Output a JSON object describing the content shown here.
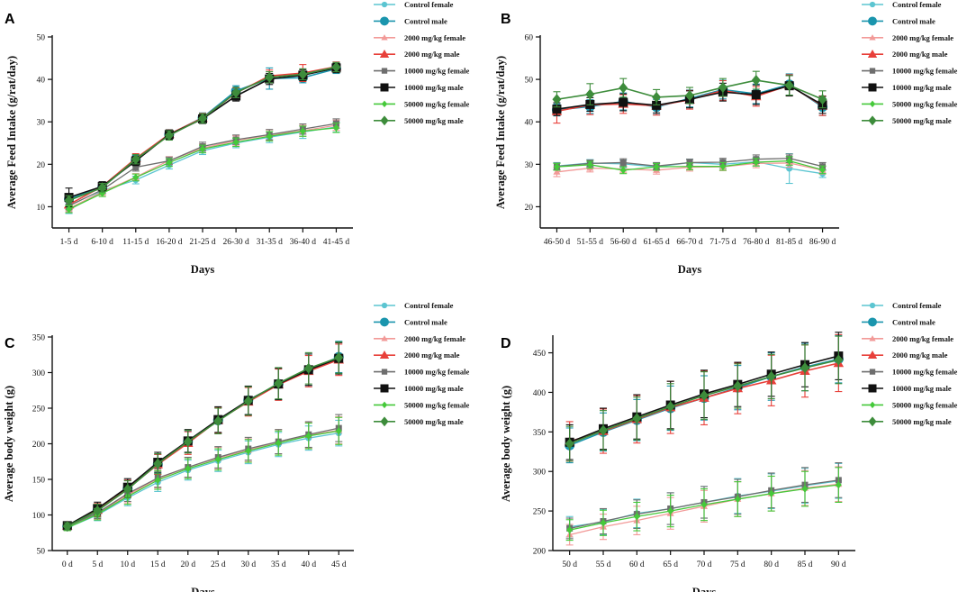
{
  "legend_entries": [
    {
      "name": "Control female",
      "color": "#5cc5d1",
      "marker": "circle",
      "size": 3.5
    },
    {
      "name": "Control male",
      "color": "#1a95ad",
      "marker": "circle",
      "size": 5.5
    },
    {
      "name": "2000 mg/kg female",
      "color": "#f29a98",
      "marker": "triangle",
      "size": 3.5
    },
    {
      "name": "2000 mg/kg male",
      "color": "#e8403a",
      "marker": "triangle",
      "size": 5
    },
    {
      "name": "10000 mg/kg female",
      "color": "#6e6e6e",
      "marker": "square",
      "size": 3.5
    },
    {
      "name": "10000 mg/kg male",
      "color": "#111111",
      "marker": "square",
      "size": 5
    },
    {
      "name": "50000 mg/kg female",
      "color": "#45c93a",
      "marker": "diamond",
      "size": 3.5
    },
    {
      "name": "50000 mg/kg male",
      "color": "#3d8c3b",
      "marker": "diamond",
      "size": 5
    }
  ],
  "chart_data": [
    {
      "panel": "A",
      "type": "line",
      "xlabel": "Days",
      "ylabel": "Average Feed Intake (g/rat/day)",
      "categories": [
        "1-5 d",
        "6-10 d",
        "11-15 d",
        "16-20 d",
        "21-25 d",
        "26-30 d",
        "31-35 d",
        "36-40 d",
        "41-45 d"
      ],
      "ylim": [
        5,
        50
      ],
      "yticks": [
        10,
        20,
        30,
        40,
        50
      ],
      "series": [
        {
          "name": "Control female",
          "values": [
            9.2,
            13.8,
            16.3,
            19.8,
            23.2,
            25.0,
            26.4,
            27.6,
            28.8
          ],
          "err": [
            0.8,
            0.8,
            0.9,
            0.9,
            0.9,
            1.1,
            1.3,
            1.5,
            1.2
          ]
        },
        {
          "name": "Control male",
          "values": [
            11.8,
            14.6,
            21.0,
            27.0,
            31.0,
            37.3,
            40.2,
            40.4,
            42.5
          ],
          "err": [
            1.2,
            1.0,
            1.1,
            1.1,
            1.1,
            1.2,
            2.5,
            1.2,
            1.1
          ]
        },
        {
          "name": "2000 mg/kg female",
          "values": [
            9.6,
            13.5,
            17.0,
            20.9,
            23.8,
            25.6,
            26.9,
            27.9,
            29.2
          ],
          "err": [
            0.8,
            0.8,
            0.8,
            0.9,
            1.0,
            1.1,
            1.2,
            1.3,
            1.2
          ]
        },
        {
          "name": "2000 mg/kg male",
          "values": [
            10.5,
            14.8,
            21.4,
            27.1,
            30.9,
            36.8,
            40.8,
            41.5,
            43.0
          ],
          "err": [
            1.0,
            1.0,
            1.1,
            1.0,
            1.1,
            1.2,
            1.4,
            2.0,
            1.1
          ]
        },
        {
          "name": "10000 mg/kg female",
          "values": [
            10.2,
            14.0,
            19.3,
            20.8,
            24.2,
            25.8,
            27.0,
            28.3,
            29.6
          ],
          "err": [
            0.9,
            0.8,
            0.9,
            0.9,
            1.0,
            1.1,
            1.2,
            1.2,
            1.1
          ]
        },
        {
          "name": "10000 mg/kg male",
          "values": [
            12.2,
            14.8,
            20.8,
            27.0,
            30.7,
            36.1,
            40.1,
            41.0,
            42.7
          ],
          "err": [
            2.2,
            1.1,
            1.1,
            1.1,
            1.1,
            1.2,
            1.3,
            1.3,
            1.1
          ]
        },
        {
          "name": "50000 mg/kg female",
          "values": [
            9.4,
            13.2,
            16.9,
            20.4,
            23.6,
            25.2,
            26.6,
            27.8,
            28.6
          ],
          "err": [
            0.8,
            0.8,
            0.8,
            0.9,
            0.9,
            1.0,
            1.1,
            1.2,
            1.1
          ]
        },
        {
          "name": "50000 mg/kg male",
          "values": [
            11.5,
            14.5,
            21.2,
            26.8,
            30.8,
            36.9,
            40.5,
            41.2,
            42.9
          ],
          "err": [
            1.1,
            1.0,
            1.1,
            1.1,
            1.1,
            1.2,
            1.3,
            1.3,
            1.1
          ]
        }
      ]
    },
    {
      "panel": "B",
      "type": "line",
      "xlabel": "Days",
      "ylabel": "Average Feed Intake (g/rat/day)",
      "categories": [
        "46-50 d",
        "51-55 d",
        "56-60 d",
        "61-65 d",
        "66-70 d",
        "71-75 d",
        "76-80 d",
        "81-85 d",
        "86-90 d"
      ],
      "ylim": [
        15,
        60
      ],
      "yticks": [
        20,
        30,
        40,
        50,
        60
      ],
      "series": [
        {
          "name": "Control female",
          "values": [
            29.6,
            30.3,
            30.1,
            29.4,
            30.4,
            30.0,
            30.6,
            29.0,
            27.8
          ],
          "err": [
            0.8,
            0.8,
            0.9,
            0.8,
            0.8,
            0.9,
            1.0,
            3.5,
            0.9
          ]
        },
        {
          "name": "Control male",
          "values": [
            42.8,
            43.6,
            44.8,
            43.5,
            45.5,
            47.6,
            46.6,
            48.8,
            43.5
          ],
          "err": [
            1.4,
            1.6,
            2.0,
            1.8,
            2.0,
            2.2,
            2.3,
            2.5,
            2.0
          ]
        },
        {
          "name": "2000 mg/kg female",
          "values": [
            28.2,
            29.1,
            28.9,
            28.6,
            29.3,
            29.4,
            30.2,
            30.3,
            28.6
          ],
          "err": [
            1.1,
            0.9,
            0.9,
            0.9,
            0.9,
            0.9,
            1.0,
            1.0,
            0.9
          ]
        },
        {
          "name": "2000 mg/kg male",
          "values": [
            42.5,
            44.0,
            44.2,
            43.8,
            45.2,
            47.4,
            46.0,
            48.6,
            43.8
          ],
          "err": [
            2.8,
            2.3,
            2.2,
            2.2,
            2.2,
            2.3,
            2.3,
            2.5,
            2.3
          ]
        },
        {
          "name": "10000 mg/kg female",
          "values": [
            29.5,
            30.2,
            30.4,
            29.6,
            30.4,
            30.5,
            31.2,
            31.4,
            29.5
          ],
          "err": [
            0.8,
            0.8,
            0.9,
            0.8,
            0.8,
            0.9,
            1.0,
            1.0,
            0.9
          ]
        },
        {
          "name": "10000 mg/kg male",
          "values": [
            43.0,
            44.1,
            44.6,
            43.9,
            45.3,
            47.0,
            46.4,
            48.5,
            44.0
          ],
          "err": [
            1.5,
            1.6,
            2.0,
            1.8,
            2.0,
            2.1,
            2.3,
            2.4,
            2.0
          ]
        },
        {
          "name": "50000 mg/kg female",
          "values": [
            29.4,
            29.9,
            28.6,
            29.4,
            29.5,
            29.5,
            30.5,
            30.8,
            28.7
          ],
          "err": [
            0.8,
            0.8,
            0.8,
            0.8,
            0.8,
            0.9,
            0.9,
            1.0,
            0.9
          ]
        },
        {
          "name": "50000 mg/kg male",
          "values": [
            45.3,
            46.5,
            48.0,
            45.8,
            46.2,
            48.1,
            49.8,
            48.6,
            45.3
          ],
          "err": [
            1.8,
            2.5,
            2.2,
            1.8,
            1.9,
            2.1,
            2.1,
            2.3,
            2.0
          ]
        }
      ]
    },
    {
      "panel": "C",
      "type": "line",
      "xlabel": "Days",
      "ylabel": "Average body weight (g)",
      "categories": [
        "0 d",
        "5 d",
        "10 d",
        "15 d",
        "20 d",
        "25 d",
        "30 d",
        "35 d",
        "40 d",
        "45 d"
      ],
      "ylim": [
        50,
        350
      ],
      "yticks": [
        50,
        100,
        150,
        200,
        250,
        300,
        350
      ],
      "series": [
        {
          "name": "Control female",
          "values": [
            82,
            100,
            124,
            146,
            163,
            176,
            188,
            199,
            208,
            215
          ],
          "err": [
            4,
            8,
            11,
            13,
            14,
            15,
            16,
            17,
            17,
            18
          ]
        },
        {
          "name": "Control male",
          "values": [
            84,
            106,
            137,
            171,
            203,
            233,
            261,
            284,
            304,
            322
          ],
          "err": [
            5,
            9,
            12,
            14,
            15,
            18,
            20,
            22,
            22,
            22
          ]
        },
        {
          "name": "2000 mg/kg female",
          "values": [
            82,
            102,
            128,
            151,
            167,
            180,
            191,
            203,
            212,
            219
          ],
          "err": [
            4,
            8,
            11,
            13,
            14,
            15,
            16,
            17,
            18,
            19
          ]
        },
        {
          "name": "2000 mg/kg male",
          "values": [
            85,
            107,
            137,
            171,
            201,
            233,
            259,
            283,
            302,
            318
          ],
          "err": [
            5,
            9,
            12,
            14,
            16,
            18,
            20,
            22,
            22,
            22
          ]
        },
        {
          "name": "10000 mg/kg female",
          "values": [
            84,
            103,
            130,
            152,
            167,
            181,
            193,
            203,
            213,
            222
          ],
          "err": [
            4,
            8,
            11,
            13,
            14,
            15,
            16,
            17,
            18,
            19
          ]
        },
        {
          "name": "10000 mg/kg male",
          "values": [
            85,
            109,
            139,
            174,
            204,
            234,
            261,
            284,
            304,
            320
          ],
          "err": [
            5,
            9,
            12,
            14,
            16,
            18,
            20,
            22,
            22,
            22
          ]
        },
        {
          "name": "50000 mg/kg female",
          "values": [
            82,
            101,
            126,
            149,
            165,
            178,
            190,
            201,
            211,
            218
          ],
          "err": [
            4,
            8,
            11,
            13,
            14,
            15,
            16,
            17,
            18,
            19
          ]
        },
        {
          "name": "50000 mg/kg male",
          "values": [
            84,
            106,
            136,
            172,
            203,
            232,
            260,
            285,
            306,
            321
          ],
          "err": [
            5,
            9,
            12,
            14,
            16,
            18,
            20,
            22,
            22,
            22
          ]
        }
      ]
    },
    {
      "panel": "D",
      "type": "line",
      "xlabel": "Days",
      "ylabel": "Average body weight (g)",
      "categories": [
        "50 d",
        "55 d",
        "60 d",
        "65 d",
        "70 d",
        "75 d",
        "80 d",
        "85 d",
        "90 d"
      ],
      "ylim": [
        200,
        470
      ],
      "yticks": [
        200,
        250,
        300,
        350,
        400,
        450
      ],
      "series": [
        {
          "name": "Control female",
          "values": [
            230,
            236,
            247,
            253,
            261,
            269,
            275,
            282,
            288
          ],
          "err": [
            13,
            16,
            18,
            20,
            20,
            22,
            22,
            22,
            22
          ]
        },
        {
          "name": "Control male",
          "values": [
            333,
            350,
            365,
            380,
            393,
            406,
            420,
            432,
            442
          ],
          "err": [
            22,
            24,
            26,
            28,
            28,
            28,
            30,
            30,
            30
          ]
        },
        {
          "name": "2000 mg/kg female",
          "values": [
            220,
            230,
            238,
            247,
            256,
            265,
            272,
            279,
            284
          ],
          "err": [
            13,
            16,
            18,
            20,
            20,
            22,
            22,
            22,
            22
          ]
        },
        {
          "name": "2000 mg/kg male",
          "values": [
            338,
            351,
            366,
            381,
            393,
            405,
            415,
            427,
            437
          ],
          "err": [
            25,
            28,
            30,
            33,
            34,
            32,
            32,
            33,
            36
          ]
        },
        {
          "name": "10000 mg/kg female",
          "values": [
            228,
            237,
            246,
            253,
            261,
            268,
            276,
            283,
            289
          ],
          "err": [
            13,
            16,
            18,
            20,
            20,
            22,
            22,
            22,
            22
          ]
        },
        {
          "name": "10000 mg/kg male",
          "values": [
            337,
            354,
            369,
            384,
            398,
            410,
            423,
            435,
            446
          ],
          "err": [
            22,
            26,
            28,
            30,
            30,
            28,
            28,
            28,
            30
          ]
        },
        {
          "name": "50000 mg/kg female",
          "values": [
            226,
            235,
            243,
            250,
            258,
            265,
            272,
            278,
            283
          ],
          "err": [
            13,
            16,
            18,
            20,
            20,
            22,
            22,
            22,
            22
          ]
        },
        {
          "name": "50000 mg/kg male",
          "values": [
            335,
            352,
            367,
            382,
            396,
            408,
            420,
            431,
            441
          ],
          "err": [
            22,
            25,
            27,
            29,
            30,
            28,
            28,
            29,
            30
          ]
        }
      ]
    }
  ]
}
